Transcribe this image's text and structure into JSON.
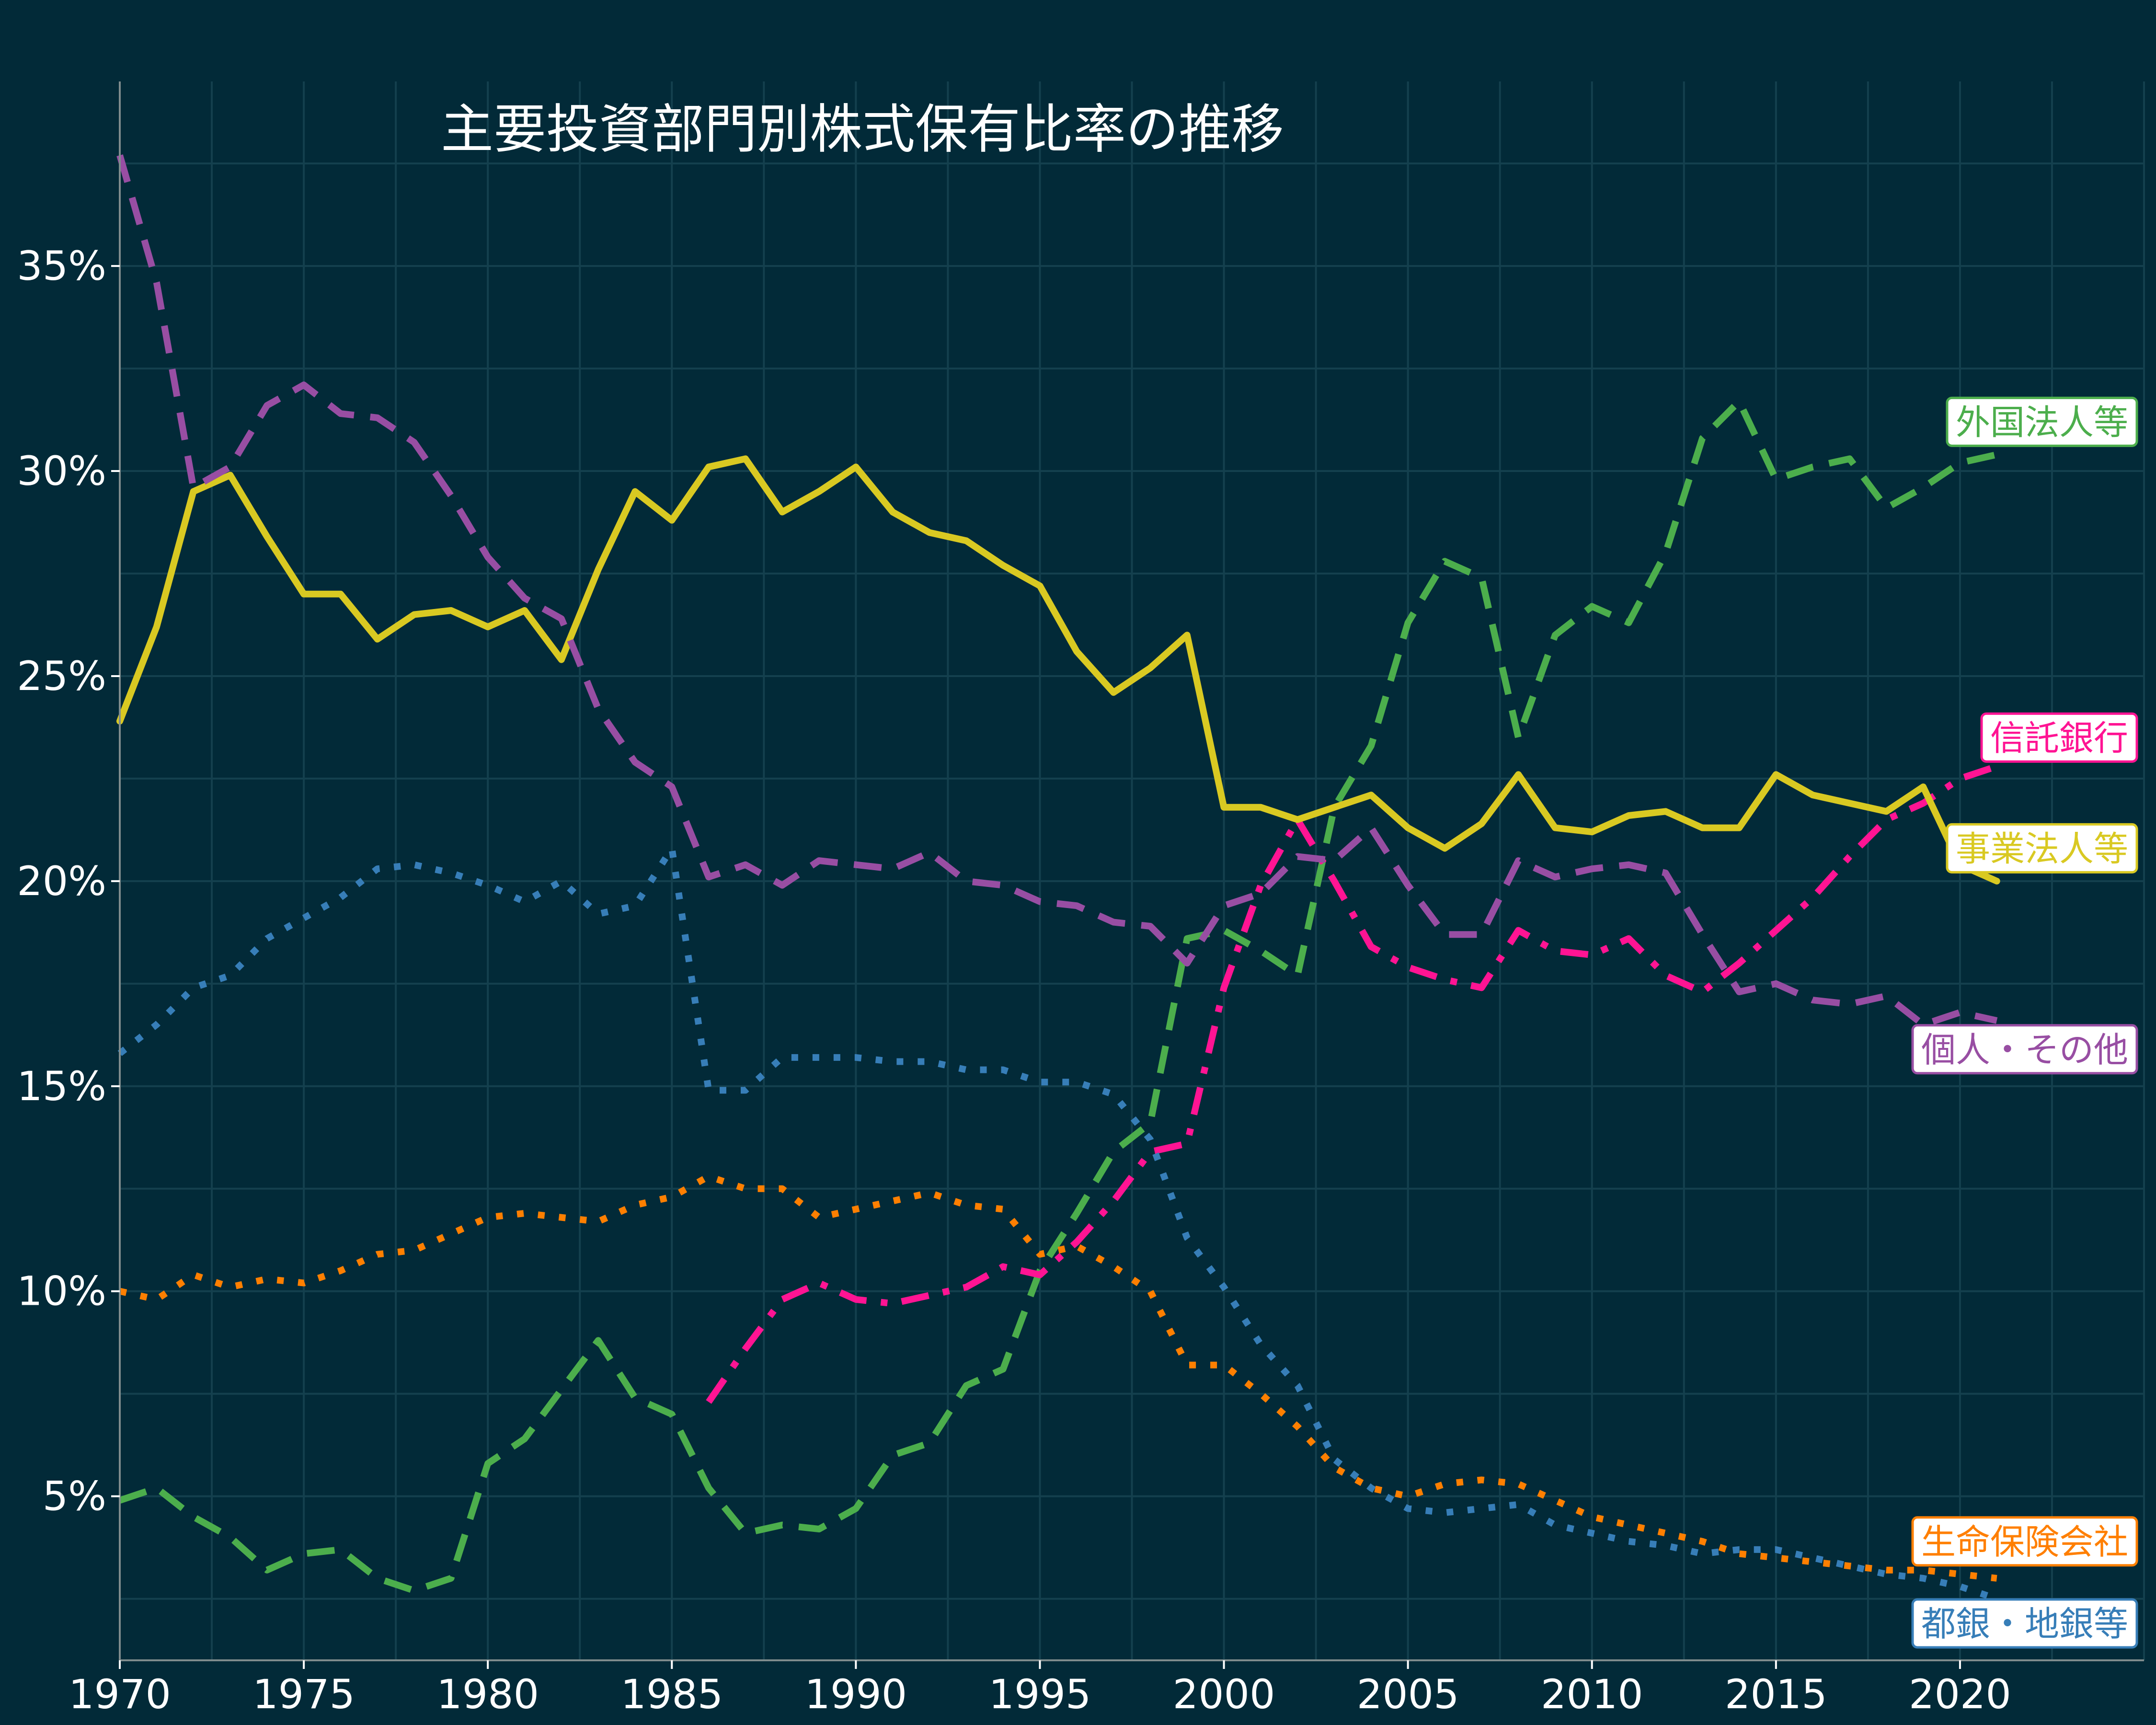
{
  "chart_data": {
    "type": "line",
    "title": "主要投資部門別株式保有比率の推移",
    "xlabel": "",
    "ylabel": "",
    "xlim": [
      1970,
      2025
    ],
    "ylim": [
      1.0,
      39.5
    ],
    "grid": true,
    "x_ticks": [
      "1970",
      "1975",
      "1980",
      "1985",
      "1990",
      "1995",
      "2000",
      "2005",
      "2010",
      "2015",
      "2020"
    ],
    "y_ticks": [
      "5%",
      "10%",
      "15%",
      "20%",
      "25%",
      "30%",
      "35%"
    ],
    "series": [
      {
        "name": "外国法人等",
        "color": "#4cae4c",
        "dash": "dashed",
        "x": [
          1970,
          1971,
          1972,
          1973,
          1974,
          1975,
          1976,
          1977,
          1978,
          1979,
          1980,
          1981,
          1982,
          1983,
          1984,
          1985,
          1986,
          1987,
          1988,
          1989,
          1990,
          1991,
          1992,
          1993,
          1994,
          1995,
          1996,
          1997,
          1998,
          1999,
          2000,
          2001,
          2002,
          2003,
          2004,
          2005,
          2006,
          2007,
          2008,
          2009,
          2010,
          2011,
          2012,
          2013,
          2014,
          2015,
          2016,
          2017,
          2018,
          2019,
          2020,
          2021
        ],
        "values": [
          4.9,
          5.2,
          4.5,
          4.0,
          3.2,
          3.6,
          3.7,
          3.0,
          2.7,
          3.0,
          5.8,
          6.4,
          7.6,
          8.8,
          7.4,
          7.0,
          5.2,
          4.1,
          4.3,
          4.2,
          4.7,
          6.0,
          6.3,
          7.7,
          8.1,
          10.5,
          11.9,
          13.4,
          14.1,
          18.6,
          18.8,
          18.3,
          17.7,
          21.8,
          23.3,
          26.3,
          27.8,
          27.4,
          23.5,
          26.0,
          26.7,
          26.3,
          28.0,
          30.8,
          31.7,
          29.8,
          30.1,
          30.3,
          29.1,
          29.6,
          30.2,
          30.4
        ]
      },
      {
        "name": "信託銀行",
        "color": "#ff1493",
        "dash": "dashdot",
        "x": [
          1986,
          1987,
          1988,
          1989,
          1990,
          1991,
          1992,
          1993,
          1994,
          1995,
          1996,
          1997,
          1998,
          1999,
          2000,
          2001,
          2002,
          2003,
          2004,
          2005,
          2006,
          2007,
          2008,
          2009,
          2010,
          2011,
          2012,
          2013,
          2014,
          2015,
          2016,
          2017,
          2018,
          2019,
          2020,
          2021
        ],
        "values": [
          7.3,
          8.6,
          9.8,
          10.2,
          9.8,
          9.7,
          9.9,
          10.1,
          10.6,
          10.4,
          11.2,
          12.2,
          13.4,
          13.6,
          17.4,
          19.9,
          21.5,
          20.0,
          18.4,
          17.9,
          17.6,
          17.4,
          18.8,
          18.3,
          18.2,
          18.6,
          17.7,
          17.3,
          18.0,
          18.8,
          19.6,
          20.6,
          21.5,
          21.9,
          22.5,
          22.8
        ]
      },
      {
        "name": "事業法人等",
        "color": "#d9c922",
        "dash": "solid",
        "x": [
          1970,
          1971,
          1972,
          1973,
          1974,
          1975,
          1976,
          1977,
          1978,
          1979,
          1980,
          1981,
          1982,
          1983,
          1984,
          1985,
          1986,
          1987,
          1988,
          1989,
          1990,
          1991,
          1992,
          1993,
          1994,
          1995,
          1996,
          1997,
          1998,
          1999,
          2000,
          2001,
          2002,
          2003,
          2004,
          2005,
          2006,
          2007,
          2008,
          2009,
          2010,
          2011,
          2012,
          2013,
          2014,
          2015,
          2016,
          2017,
          2018,
          2019,
          2020,
          2021
        ],
        "values": [
          23.9,
          26.2,
          29.5,
          29.9,
          28.4,
          27.0,
          27.0,
          25.9,
          26.5,
          26.6,
          26.2,
          26.6,
          25.4,
          27.6,
          29.5,
          28.8,
          30.1,
          30.3,
          29.0,
          29.5,
          30.1,
          29.0,
          28.5,
          28.3,
          27.7,
          27.2,
          25.6,
          24.6,
          25.2,
          26.0,
          21.8,
          21.8,
          21.5,
          21.8,
          22.1,
          21.3,
          20.8,
          21.4,
          22.6,
          21.3,
          21.2,
          21.6,
          21.7,
          21.3,
          21.3,
          22.6,
          22.1,
          21.9,
          21.7,
          22.3,
          20.4,
          20.0
        ]
      },
      {
        "name": "個人・その他",
        "color": "#984ea3",
        "dash": "dashed",
        "x": [
          1970,
          1971,
          1972,
          1973,
          1974,
          1975,
          1976,
          1977,
          1978,
          1979,
          1980,
          1981,
          1982,
          1983,
          1984,
          1985,
          1986,
          1987,
          1988,
          1989,
          1990,
          1991,
          1992,
          1993,
          1994,
          1995,
          1996,
          1997,
          1998,
          1999,
          2000,
          2001,
          2002,
          2003,
          2004,
          2005,
          2006,
          2007,
          2008,
          2009,
          2010,
          2011,
          2012,
          2013,
          2014,
          2015,
          2016,
          2017,
          2018,
          2019,
          2020,
          2021
        ],
        "values": [
          37.7,
          34.6,
          29.6,
          30.1,
          31.6,
          32.1,
          31.4,
          31.3,
          30.7,
          29.4,
          27.9,
          26.9,
          26.4,
          24.2,
          22.9,
          22.3,
          20.1,
          20.4,
          19.9,
          20.5,
          20.4,
          20.3,
          20.7,
          20.0,
          19.9,
          19.5,
          19.4,
          19.0,
          18.9,
          18.0,
          19.4,
          19.7,
          20.6,
          20.5,
          21.3,
          19.9,
          18.7,
          18.7,
          20.5,
          20.1,
          20.3,
          20.4,
          20.2,
          18.7,
          17.3,
          17.5,
          17.1,
          17.0,
          17.2,
          16.5,
          16.8,
          16.6
        ]
      },
      {
        "name": "都銀・地銀等",
        "color": "#377eb8",
        "dash": "dotted",
        "x": [
          1970,
          1971,
          1972,
          1973,
          1974,
          1975,
          1976,
          1977,
          1978,
          1979,
          1980,
          1981,
          1982,
          1983,
          1984,
          1985,
          1986,
          1987,
          1988,
          1989,
          1990,
          1991,
          1992,
          1993,
          1994,
          1995,
          1996,
          1997,
          1998,
          1999,
          2000,
          2001,
          2002,
          2003,
          2004,
          2005,
          2006,
          2007,
          2008,
          2009,
          2010,
          2011,
          2012,
          2013,
          2014,
          2015,
          2016,
          2017,
          2018,
          2019,
          2020,
          2021
        ],
        "values": [
          15.8,
          16.5,
          17.4,
          17.7,
          18.6,
          19.1,
          19.6,
          20.3,
          20.4,
          20.2,
          19.9,
          19.5,
          20.0,
          19.2,
          19.4,
          20.8,
          14.9,
          14.9,
          15.7,
          15.7,
          15.7,
          15.6,
          15.6,
          15.4,
          15.4,
          15.1,
          15.1,
          14.8,
          13.7,
          11.3,
          10.1,
          8.7,
          7.7,
          5.9,
          5.2,
          4.7,
          4.6,
          4.7,
          4.8,
          4.3,
          4.1,
          3.9,
          3.8,
          3.6,
          3.7,
          3.7,
          3.5,
          3.3,
          3.1,
          3.0,
          2.8,
          2.5
        ]
      },
      {
        "name": "生命保険会社",
        "color": "#ff7f00",
        "dash": "dotted",
        "x": [
          1970,
          1971,
          1972,
          1973,
          1974,
          1975,
          1976,
          1977,
          1978,
          1979,
          1980,
          1981,
          1982,
          1983,
          1984,
          1985,
          1986,
          1987,
          1988,
          1989,
          1990,
          1991,
          1992,
          1993,
          1994,
          1995,
          1996,
          1997,
          1998,
          1999,
          2000,
          2001,
          2002,
          2003,
          2004,
          2005,
          2006,
          2007,
          2008,
          2009,
          2010,
          2011,
          2012,
          2013,
          2014,
          2015,
          2016,
          2017,
          2018,
          2019,
          2020,
          2021
        ],
        "values": [
          10.0,
          9.8,
          10.4,
          10.1,
          10.3,
          10.2,
          10.5,
          10.9,
          11.0,
          11.4,
          11.8,
          11.9,
          11.8,
          11.7,
          12.1,
          12.3,
          12.8,
          12.5,
          12.5,
          11.8,
          12.0,
          12.2,
          12.4,
          12.1,
          12.0,
          10.9,
          11.1,
          10.6,
          10.0,
          8.2,
          8.2,
          7.5,
          6.7,
          5.7,
          5.2,
          5.0,
          5.3,
          5.4,
          5.3,
          4.9,
          4.5,
          4.3,
          4.1,
          3.9,
          3.6,
          3.5,
          3.4,
          3.3,
          3.2,
          3.2,
          3.1,
          3.0
        ]
      }
    ],
    "end_labels": [
      {
        "series": "外国法人等",
        "text": "外国法人等",
        "y": 31.2
      },
      {
        "series": "信託銀行",
        "text": "信託銀行",
        "y": 23.5
      },
      {
        "series": "事業法人等",
        "text": "事業法人等",
        "y": 20.8
      },
      {
        "series": "個人・その他",
        "text": "個人・その他",
        "y": 15.9
      },
      {
        "series": "生命保険会社",
        "text": "生命保険会社",
        "y": 3.9
      },
      {
        "series": "都銀・地銀等",
        "text": "都銀・地銀等",
        "y": 1.9
      }
    ]
  }
}
